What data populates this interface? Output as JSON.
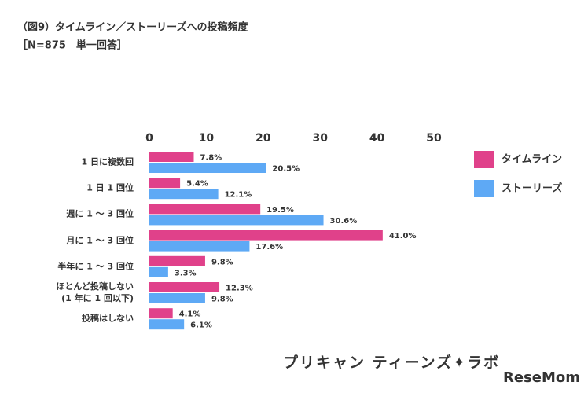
{
  "chart_data": {
    "type": "hbar",
    "title": "（図9）タイムライン／ストーリーズへの投稿頻度",
    "subtitle": "［N=875　単一回答］",
    "categories": [
      "1 日に複数回",
      "1 日 1 回位",
      "週に 1 ～ 3 回位",
      "月に 1 ～ 3 回位",
      "半年に 1 ～ 3 回位",
      "ほとんど投稿しない\n(1 年に 1 回以下)",
      "投稿はしない"
    ],
    "series": [
      {
        "name": "タイムライン",
        "color": "#e0418a",
        "values": [
          7.8,
          5.4,
          19.5,
          41.0,
          9.8,
          12.3,
          4.1
        ],
        "value_labels": [
          "7.8%",
          "5.4%",
          "19.5%",
          "41.0%",
          "9.8%",
          "12.3%",
          "4.1%"
        ]
      },
      {
        "name": "ストーリーズ",
        "color": "#5ea9f5",
        "values": [
          20.5,
          12.1,
          30.6,
          17.6,
          3.3,
          9.8,
          6.1
        ],
        "value_labels": [
          "20.5%",
          "12.1%",
          "30.6%",
          "17.6%",
          "3.3%",
          "9.8%",
          "6.1%"
        ]
      }
    ],
    "xlim": [
      0,
      50
    ],
    "xticks": [
      0,
      10,
      20,
      30,
      40,
      50
    ],
    "legend": "right",
    "annotations": [
      "プリキャン ティーンズ✦ラボ",
      "ReseMom"
    ]
  }
}
